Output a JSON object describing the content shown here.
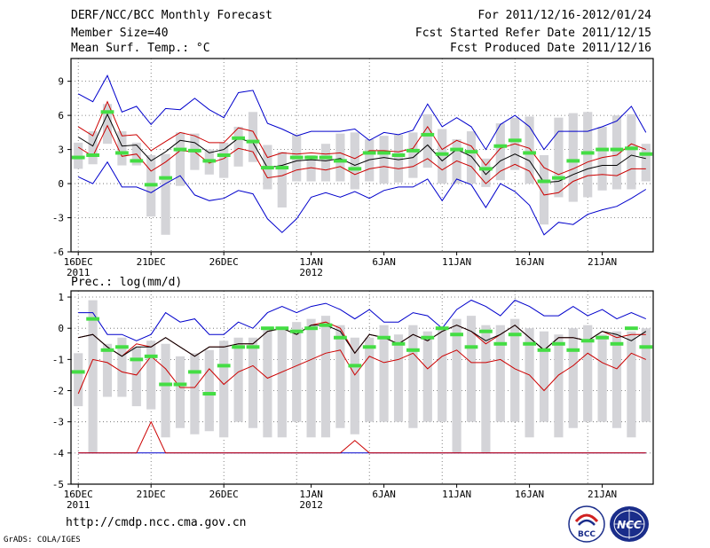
{
  "header": {
    "title": "DERF/NCC/BCC Monthly Forecast",
    "member_size": "Member Size=40",
    "variable": "Mean Surf. Temp.: °C",
    "forecast_range": "For 2011/12/16-2012/01/24",
    "started": "Fcst Started Refer Date 2011/12/15",
    "produced": "Fcst Produced Date 2011/12/16"
  },
  "footer": {
    "url": "http://cmdp.ncc.cma.gov.cn",
    "grads": "GrADS: COLA/IGES",
    "logo_bcc": "BCC",
    "logo_ncc": "NCC"
  },
  "colors": {
    "max_min": "#0000cc",
    "mean": "#000000",
    "sd": "#cc0000",
    "box": "#d4d4d8",
    "median": "#44dd44",
    "grid": "#666666"
  },
  "chart_data": [
    {
      "type": "box",
      "title": "Mean Surf. Temp.: °C",
      "xlabel": "",
      "ylabel": "°C",
      "ylim": [
        -6,
        11
      ],
      "yticks": [
        -6,
        -3,
        0,
        3,
        6,
        9
      ],
      "grid": true,
      "x_tick_labels": [
        {
          "day": 1,
          "label": "16DEC",
          "sub": "2011"
        },
        {
          "day": 6,
          "label": "21DEC",
          "sub": ""
        },
        {
          "day": 11,
          "label": "26DEC",
          "sub": ""
        },
        {
          "day": 17,
          "label": "1JAN",
          "sub": "2012"
        },
        {
          "day": 22,
          "label": "6JAN",
          "sub": ""
        },
        {
          "day": 27,
          "label": "11JAN",
          "sub": ""
        },
        {
          "day": 32,
          "label": "16JAN",
          "sub": ""
        },
        {
          "day": 37,
          "label": "21JAN",
          "sub": ""
        }
      ],
      "days": 40,
      "series": [
        {
          "name": "max",
          "values": [
            7.9,
            7.2,
            9.5,
            6.3,
            6.8,
            5.2,
            6.6,
            6.5,
            7.5,
            6.5,
            5.8,
            8.0,
            8.2,
            5.3,
            4.8,
            4.2,
            4.6,
            4.6,
            4.6,
            4.8,
            3.8,
            4.5,
            4.3,
            4.7,
            7.0,
            5.0,
            5.8,
            5.0,
            3.0,
            5.2,
            6.0,
            5.0,
            3.0,
            4.6,
            4.6,
            4.6,
            5.0,
            5.5,
            6.8,
            4.5
          ]
        },
        {
          "name": "sd_upper",
          "values": [
            5.0,
            4.2,
            7.2,
            4.2,
            4.3,
            2.9,
            3.7,
            4.5,
            4.2,
            3.6,
            3.6,
            4.9,
            4.6,
            2.3,
            2.7,
            2.6,
            2.7,
            2.6,
            2.7,
            2.2,
            2.9,
            2.9,
            2.8,
            3.1,
            5.0,
            3.0,
            3.8,
            3.3,
            1.6,
            3.1,
            3.5,
            3.1,
            1.4,
            0.8,
            1.3,
            1.9,
            2.3,
            2.5,
            3.5,
            3.0
          ]
        },
        {
          "name": "mean",
          "values": [
            4.1,
            3.3,
            6.1,
            3.3,
            3.4,
            2.0,
            2.8,
            3.8,
            3.6,
            2.7,
            3.0,
            4.0,
            3.6,
            1.4,
            1.6,
            2.0,
            2.1,
            2.0,
            2.2,
            1.6,
            2.1,
            2.3,
            2.1,
            2.3,
            3.4,
            2.0,
            3.0,
            2.4,
            0.8,
            2.0,
            2.6,
            2.0,
            0.1,
            0.2,
            0.8,
            1.3,
            1.6,
            1.6,
            2.5,
            2.2
          ]
        },
        {
          "name": "sd_lower",
          "values": [
            3.2,
            2.4,
            5.1,
            2.4,
            2.6,
            1.1,
            1.9,
            2.9,
            2.8,
            1.8,
            2.2,
            3.1,
            2.8,
            0.5,
            0.7,
            1.2,
            1.4,
            1.2,
            1.5,
            0.8,
            1.3,
            1.5,
            1.3,
            1.5,
            2.2,
            1.2,
            2.0,
            1.5,
            0.0,
            1.1,
            1.7,
            1.1,
            -1.0,
            -0.8,
            0.2,
            0.7,
            0.8,
            0.7,
            1.3,
            1.3
          ]
        },
        {
          "name": "min",
          "values": [
            0.6,
            0.0,
            1.9,
            -0.3,
            -0.3,
            -0.8,
            0.0,
            0.7,
            -1.0,
            -1.5,
            -1.3,
            -0.6,
            -0.9,
            -3.1,
            -4.3,
            -3.1,
            -1.2,
            -0.8,
            -1.2,
            -0.7,
            -1.3,
            -0.6,
            -0.3,
            -0.3,
            0.4,
            -1.5,
            0.4,
            -0.1,
            -2.1,
            0.0,
            -0.7,
            -1.9,
            -4.5,
            -3.4,
            -3.6,
            -2.7,
            -2.3,
            -2.0,
            -1.3,
            -0.5
          ]
        }
      ],
      "box_q1": [
        1.3,
        1.7,
        3.5,
        1.6,
        1.6,
        -2.9,
        -4.5,
        -0.2,
        1.2,
        0.8,
        0.5,
        1.5,
        1.9,
        -0.5,
        -2.1,
        0.2,
        0.2,
        0.2,
        0.2,
        -0.5,
        0.2,
        0.0,
        0.1,
        0.5,
        1.4,
        0.0,
        0.0,
        0.0,
        -0.3,
        0.3,
        1.2,
        0.0,
        -3.6,
        -1.2,
        -1.6,
        -1.2,
        -0.6,
        -0.5,
        -0.5,
        0.2
      ],
      "box_q3": [
        3.6,
        4.6,
        7.0,
        4.6,
        3.6,
        2.5,
        2.6,
        4.5,
        4.4,
        3.0,
        3.6,
        5.0,
        6.3,
        3.4,
        2.8,
        4.3,
        2.5,
        3.5,
        4.4,
        4.5,
        3.9,
        4.2,
        4.3,
        4.5,
        6.1,
        4.8,
        3.9,
        4.6,
        2.2,
        5.3,
        5.8,
        5.9,
        2.5,
        5.8,
        6.2,
        6.3,
        5.0,
        6.0,
        6.1,
        3.5
      ],
      "median": [
        2.3,
        2.5,
        6.3,
        2.7,
        2.0,
        -0.1,
        0.5,
        3.0,
        2.9,
        2.0,
        2.5,
        4.0,
        3.7,
        1.4,
        1.4,
        2.3,
        2.3,
        2.3,
        2.0,
        1.3,
        2.7,
        2.7,
        2.5,
        2.9,
        4.3,
        2.6,
        3.0,
        2.8,
        1.3,
        3.3,
        3.8,
        2.7,
        0.2,
        0.5,
        2.0,
        2.7,
        3.0,
        3.0,
        3.1,
        2.6
      ]
    },
    {
      "type": "box",
      "title": "Prec.: log(mm/d)",
      "xlabel": "",
      "ylabel": "log(mm/d)",
      "ylim": [
        -5,
        1.2
      ],
      "yticks": [
        -5,
        -4,
        -3,
        -2,
        -1,
        0,
        1
      ],
      "grid": true,
      "x_tick_labels": [
        {
          "day": 1,
          "label": "16DEC",
          "sub": "2011"
        },
        {
          "day": 6,
          "label": "21DEC",
          "sub": ""
        },
        {
          "day": 11,
          "label": "26DEC",
          "sub": ""
        },
        {
          "day": 17,
          "label": "1JAN",
          "sub": "2012"
        },
        {
          "day": 22,
          "label": "6JAN",
          "sub": ""
        },
        {
          "day": 27,
          "label": "11JAN",
          "sub": ""
        },
        {
          "day": 32,
          "label": "16JAN",
          "sub": ""
        },
        {
          "day": 37,
          "label": "21JAN",
          "sub": ""
        }
      ],
      "days": 40,
      "series": [
        {
          "name": "max",
          "values": [
            0.5,
            0.5,
            -0.2,
            -0.2,
            -0.4,
            -0.2,
            0.5,
            0.2,
            0.3,
            -0.2,
            -0.2,
            0.2,
            0.0,
            0.5,
            0.7,
            0.5,
            0.7,
            0.8,
            0.6,
            0.3,
            0.6,
            0.2,
            0.2,
            0.5,
            0.4,
            0.0,
            0.6,
            0.9,
            0.7,
            0.4,
            0.9,
            0.7,
            0.4,
            0.4,
            0.7,
            0.4,
            0.6,
            0.3,
            0.5,
            0.3
          ]
        },
        {
          "name": "sd_upper",
          "values": [
            -0.3,
            -0.2,
            -0.6,
            -0.9,
            -0.5,
            -0.6,
            -0.3,
            -0.6,
            -0.9,
            -0.6,
            -0.6,
            -0.5,
            -0.5,
            -0.1,
            0.0,
            -0.2,
            0.1,
            0.2,
            0.0,
            -0.8,
            -0.2,
            -0.3,
            -0.5,
            -0.2,
            -0.4,
            -0.1,
            0.1,
            -0.1,
            -0.5,
            -0.2,
            0.1,
            -0.3,
            -0.7,
            -0.3,
            -0.3,
            -0.4,
            -0.1,
            -0.3,
            -0.2,
            -0.2
          ]
        },
        {
          "name": "mean",
          "values": [
            -0.3,
            -0.2,
            -0.6,
            -0.9,
            -0.6,
            -0.6,
            -0.3,
            -0.6,
            -0.9,
            -0.6,
            -0.6,
            -0.5,
            -0.5,
            -0.1,
            0.0,
            -0.2,
            0.1,
            0.1,
            -0.1,
            -0.8,
            -0.2,
            -0.3,
            -0.5,
            -0.2,
            -0.4,
            -0.1,
            0.1,
            -0.1,
            -0.4,
            -0.2,
            0.1,
            -0.3,
            -0.7,
            -0.3,
            -0.3,
            -0.4,
            -0.1,
            -0.2,
            -0.4,
            -0.1
          ]
        },
        {
          "name": "sd_lower",
          "values": [
            -2.1,
            -1.0,
            -1.1,
            -1.4,
            -1.5,
            -0.9,
            -1.3,
            -1.9,
            -1.9,
            -1.3,
            -1.8,
            -1.4,
            -1.2,
            -1.6,
            -1.4,
            -1.2,
            -1.0,
            -0.8,
            -0.7,
            -1.5,
            -0.9,
            -1.1,
            -1.0,
            -0.8,
            -1.3,
            -0.9,
            -0.7,
            -1.1,
            -1.1,
            -1.0,
            -1.3,
            -1.5,
            -2.0,
            -1.5,
            -1.2,
            -0.8,
            -1.1,
            -1.3,
            -0.8,
            -1.0
          ]
        },
        {
          "name": "min",
          "values": [
            -4,
            -4,
            -4,
            -4,
            -4,
            -4,
            -4,
            -4,
            -4,
            -4,
            -4,
            -4,
            -4,
            -4,
            -4,
            -4,
            -4,
            -4,
            -4,
            -4,
            -4,
            -4,
            -4,
            -4,
            -4,
            -4,
            -4,
            -4,
            -4,
            -4,
            -4,
            -4,
            -4,
            -4,
            -4,
            -4,
            -4,
            -4,
            -4,
            -4
          ]
        },
        {
          "name": "sd_spike",
          "values": [
            -4,
            -4,
            -4,
            -4,
            -4,
            -3.0,
            -4,
            -4,
            -4,
            -4,
            -4,
            -4,
            -4,
            -4,
            -4,
            -4,
            -4,
            -4,
            -4,
            -3.6,
            -4,
            -4,
            -4,
            -4,
            -4,
            -4,
            -4,
            -4,
            -4,
            -4,
            -4,
            -4,
            -4,
            -4,
            -4,
            -4,
            -4,
            -4,
            -4,
            -4
          ]
        }
      ],
      "box_q1": [
        -2.5,
        -4.0,
        -2.2,
        -2.2,
        -2.5,
        -2.6,
        -3.5,
        -3.2,
        -3.4,
        -3.3,
        -3.5,
        -3.0,
        -3.2,
        -3.5,
        -3.5,
        -3.0,
        -3.5,
        -3.5,
        -3.2,
        -3.4,
        -3.0,
        -3.0,
        -3.0,
        -3.2,
        -3.0,
        -3.0,
        -4.0,
        -3.0,
        -4.0,
        -3.0,
        -3.0,
        -3.5,
        -3.0,
        -3.5,
        -3.2,
        -3.0,
        -3.0,
        -3.2,
        -3.5,
        -3.0
      ],
      "box_q3": [
        -0.8,
        0.9,
        -0.5,
        -0.3,
        -0.6,
        -0.4,
        -0.5,
        -0.9,
        -0.8,
        -0.7,
        -0.4,
        -0.3,
        -0.3,
        0.0,
        0.0,
        0.2,
        0.3,
        0.4,
        0.1,
        -0.3,
        -0.3,
        0.1,
        -0.2,
        0.1,
        -0.1,
        0.0,
        0.3,
        0.4,
        0.1,
        0.1,
        0.3,
        0.0,
        -0.1,
        -0.2,
        0.0,
        0.1,
        -0.2,
        -0.1,
        -0.1,
        0.0
      ],
      "median": [
        -1.4,
        0.3,
        -0.7,
        -0.6,
        -1.0,
        -0.9,
        -1.8,
        -1.8,
        -1.4,
        -2.1,
        -1.2,
        -0.6,
        -0.6,
        0.0,
        0.0,
        -0.1,
        0.0,
        0.1,
        -0.3,
        -1.2,
        -0.6,
        -0.3,
        -0.5,
        -0.7,
        -0.3,
        0.0,
        -0.2,
        -0.6,
        -0.1,
        -0.5,
        -0.2,
        -0.5,
        -0.7,
        -0.5,
        -0.7,
        -0.4,
        -0.3,
        -0.5,
        0.0,
        -0.6
      ]
    }
  ],
  "panel_label_precip": "Prec.: log(mm/d)"
}
